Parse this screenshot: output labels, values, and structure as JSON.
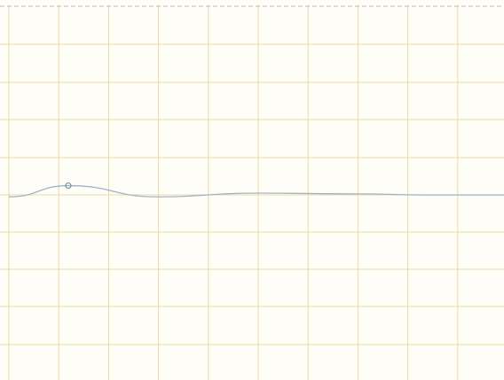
{
  "colors": {
    "background": "#fefdf8",
    "grid": "#ecd9a2",
    "top_border": "#b9b9b9",
    "line": "#9fb3c4",
    "marker": "#7e93a6"
  },
  "chart_data": {
    "type": "line",
    "title": "",
    "xlabel": "",
    "ylabel": "",
    "x": [
      0,
      1.2,
      3,
      5,
      7,
      8.5,
      10
    ],
    "series": [
      {
        "values": [
          4.9,
          5.2,
          4.9,
          5.0,
          4.98,
          4.95,
          4.95
        ]
      }
    ],
    "highlight_point_index": 1,
    "xlim": [
      0,
      10
    ],
    "ylim": [
      0,
      10
    ],
    "grid": true,
    "tick_labels": "none",
    "legend": "none"
  }
}
